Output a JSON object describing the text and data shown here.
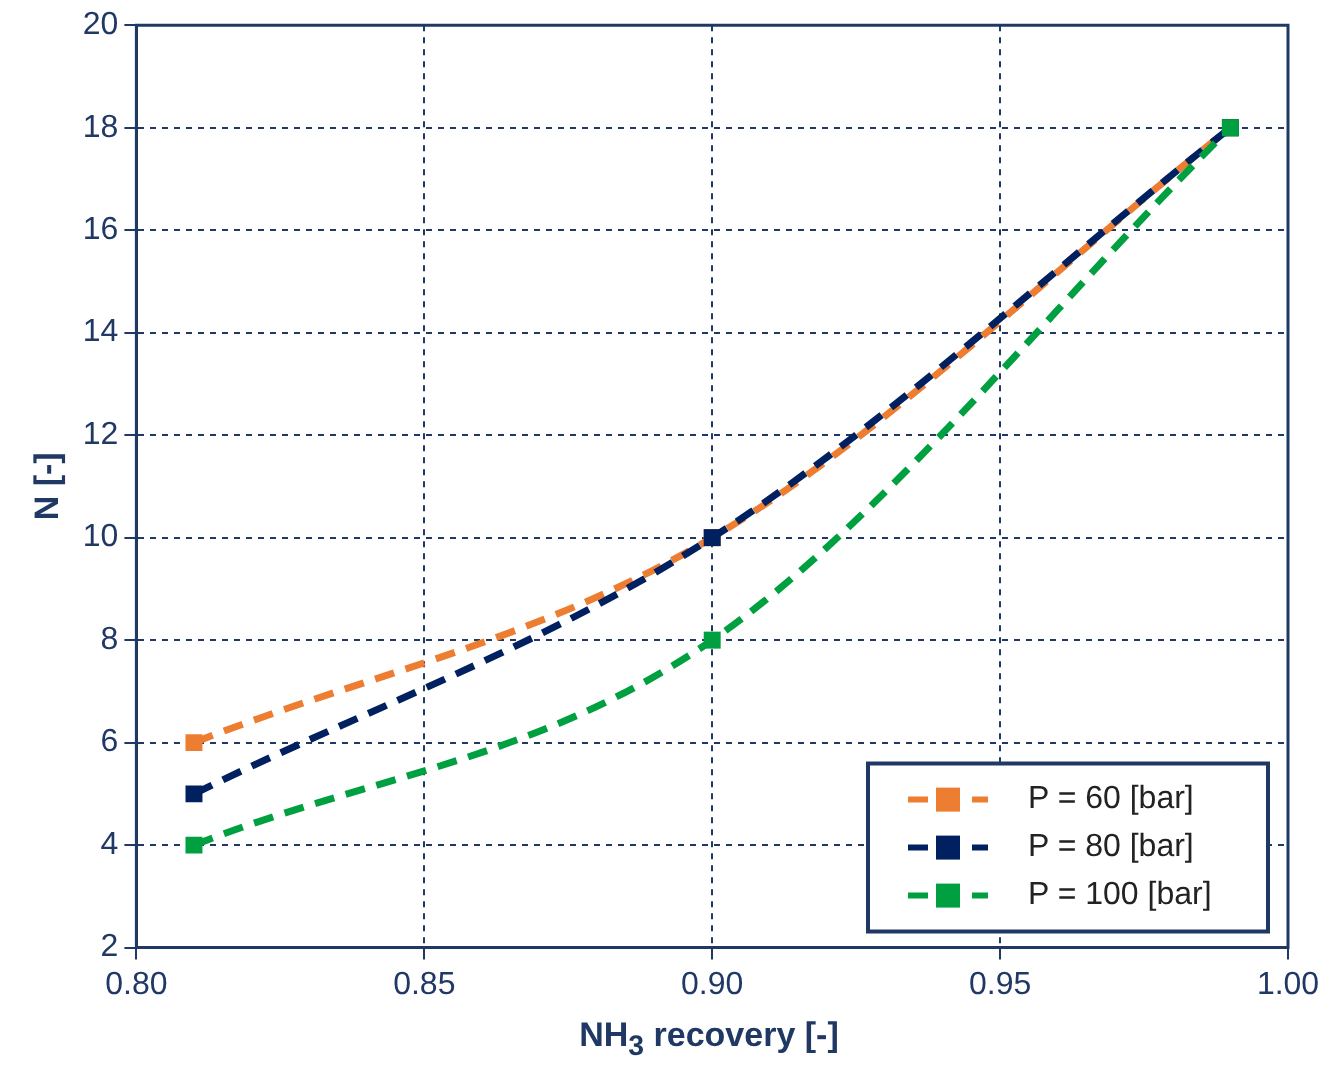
{
  "chart_data": {
    "type": "line",
    "xlabel": "NH$_{3}$ recovery [-]",
    "ylabel": "N [-]",
    "x": [
      0.81,
      0.9,
      0.99
    ],
    "series": [
      {
        "name": "P = 60 [bar]",
        "color": "#ed7d31",
        "values": [
          6,
          10,
          18
        ]
      },
      {
        "name": "P = 80 [bar]",
        "color": "#002060",
        "values": [
          5,
          10,
          18
        ]
      },
      {
        "name": "P = 100 [bar]",
        "color": "#00a040",
        "values": [
          4,
          8,
          18
        ]
      }
    ],
    "xlim": [
      0.8,
      1.0
    ],
    "xticks": [
      {
        "value": 0.8,
        "label": "0.80"
      },
      {
        "value": 0.85,
        "label": "0.85"
      },
      {
        "value": 0.9,
        "label": "0.90"
      },
      {
        "value": 0.95,
        "label": "0.95"
      },
      {
        "value": 1.0,
        "label": "1.00"
      }
    ],
    "ylim": [
      2,
      20
    ],
    "yticks": [
      2,
      4,
      6,
      8,
      10,
      12,
      14,
      16,
      18,
      20
    ],
    "grid": true,
    "legend": "bottom right",
    "marker": "square",
    "line_style": "dashed"
  }
}
